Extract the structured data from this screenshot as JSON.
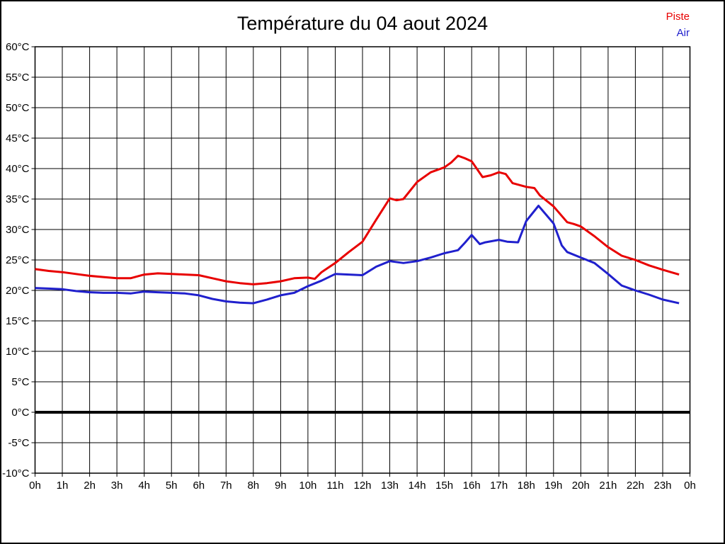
{
  "title": "Température du 04 aout 2024",
  "legend": {
    "items": [
      {
        "label": "Piste",
        "color": "#e80000"
      },
      {
        "label": "Air",
        "color": "#2020cd"
      }
    ]
  },
  "chart_data": {
    "type": "line",
    "title": "Température du 04 aout 2024",
    "xlabel": "",
    "ylabel": "",
    "xlim": [
      0,
      24
    ],
    "ylim": [
      -10,
      60
    ],
    "grid": true,
    "zero_line_emphasized": true,
    "legend_position": "top-right",
    "x_ticks": [
      {
        "value": 0,
        "label": "0h"
      },
      {
        "value": 1,
        "label": "1h"
      },
      {
        "value": 2,
        "label": "2h"
      },
      {
        "value": 3,
        "label": "3h"
      },
      {
        "value": 4,
        "label": "4h"
      },
      {
        "value": 5,
        "label": "5h"
      },
      {
        "value": 6,
        "label": "6h"
      },
      {
        "value": 7,
        "label": "7h"
      },
      {
        "value": 8,
        "label": "8h"
      },
      {
        "value": 9,
        "label": "9h"
      },
      {
        "value": 10,
        "label": "10h"
      },
      {
        "value": 11,
        "label": "11h"
      },
      {
        "value": 12,
        "label": "12h"
      },
      {
        "value": 13,
        "label": "13h"
      },
      {
        "value": 14,
        "label": "14h"
      },
      {
        "value": 15,
        "label": "15h"
      },
      {
        "value": 16,
        "label": "16h"
      },
      {
        "value": 17,
        "label": "17h"
      },
      {
        "value": 18,
        "label": "18h"
      },
      {
        "value": 19,
        "label": "19h"
      },
      {
        "value": 20,
        "label": "20h"
      },
      {
        "value": 21,
        "label": "21h"
      },
      {
        "value": 22,
        "label": "22h"
      },
      {
        "value": 23,
        "label": "23h"
      },
      {
        "value": 24,
        "label": "0h"
      }
    ],
    "y_ticks": [
      {
        "value": 60,
        "label": "60°C"
      },
      {
        "value": 55,
        "label": "55°C"
      },
      {
        "value": 50,
        "label": "50°C"
      },
      {
        "value": 45,
        "label": "45°C"
      },
      {
        "value": 40,
        "label": "40°C"
      },
      {
        "value": 35,
        "label": "35°C"
      },
      {
        "value": 30,
        "label": "30°C"
      },
      {
        "value": 25,
        "label": "25°C"
      },
      {
        "value": 20,
        "label": "20°C"
      },
      {
        "value": 15,
        "label": "15°C"
      },
      {
        "value": 10,
        "label": "10°C"
      },
      {
        "value": 5,
        "label": "5°C"
      },
      {
        "value": 0,
        "label": "0°C"
      },
      {
        "value": -5,
        "label": "-5°C"
      },
      {
        "value": -10,
        "label": "-10°C"
      }
    ],
    "series": [
      {
        "name": "Piste",
        "color": "#e80000",
        "points": [
          [
            0,
            23.5
          ],
          [
            0.5,
            23.2
          ],
          [
            1,
            23.0
          ],
          [
            1.5,
            22.7
          ],
          [
            2,
            22.4
          ],
          [
            2.5,
            22.2
          ],
          [
            3,
            22.0
          ],
          [
            3.5,
            22.0
          ],
          [
            4,
            22.6
          ],
          [
            4.5,
            22.8
          ],
          [
            5,
            22.7
          ],
          [
            5.5,
            22.6
          ],
          [
            6,
            22.5
          ],
          [
            6.5,
            22.0
          ],
          [
            7,
            21.5
          ],
          [
            7.5,
            21.2
          ],
          [
            8,
            21.0
          ],
          [
            8.5,
            21.2
          ],
          [
            9,
            21.5
          ],
          [
            9.5,
            22.0
          ],
          [
            10,
            22.1
          ],
          [
            10.25,
            21.9
          ],
          [
            10.5,
            23.0
          ],
          [
            11,
            24.5
          ],
          [
            11.5,
            26.3
          ],
          [
            12,
            28.0
          ],
          [
            12.5,
            31.6
          ],
          [
            13,
            35.1
          ],
          [
            13.25,
            34.8
          ],
          [
            13.5,
            35.0
          ],
          [
            14,
            37.8
          ],
          [
            14.5,
            39.4
          ],
          [
            15,
            40.2
          ],
          [
            15.25,
            41.0
          ],
          [
            15.5,
            42.1
          ],
          [
            15.75,
            41.7
          ],
          [
            16,
            41.2
          ],
          [
            16.4,
            38.6
          ],
          [
            16.7,
            38.9
          ],
          [
            17,
            39.4
          ],
          [
            17.25,
            39.1
          ],
          [
            17.5,
            37.6
          ],
          [
            18,
            37.0
          ],
          [
            18.3,
            36.8
          ],
          [
            18.5,
            35.6
          ],
          [
            19,
            33.8
          ],
          [
            19.5,
            31.2
          ],
          [
            19.75,
            30.9
          ],
          [
            20,
            30.5
          ],
          [
            20.5,
            28.9
          ],
          [
            21,
            27.1
          ],
          [
            21.5,
            25.7
          ],
          [
            22,
            25.0
          ],
          [
            22.5,
            24.1
          ],
          [
            23,
            23.4
          ],
          [
            23.3,
            23.0
          ],
          [
            23.6,
            22.6
          ]
        ]
      },
      {
        "name": "Air",
        "color": "#2020cd",
        "points": [
          [
            0,
            20.4
          ],
          [
            0.5,
            20.3
          ],
          [
            1,
            20.2
          ],
          [
            1.5,
            19.9
          ],
          [
            2,
            19.7
          ],
          [
            2.5,
            19.6
          ],
          [
            3,
            19.6
          ],
          [
            3.5,
            19.5
          ],
          [
            4,
            19.8
          ],
          [
            4.5,
            19.7
          ],
          [
            5,
            19.6
          ],
          [
            5.5,
            19.5
          ],
          [
            6,
            19.2
          ],
          [
            6.5,
            18.6
          ],
          [
            7,
            18.2
          ],
          [
            7.5,
            18.0
          ],
          [
            8,
            17.9
          ],
          [
            8.5,
            18.5
          ],
          [
            9,
            19.2
          ],
          [
            9.5,
            19.6
          ],
          [
            10,
            20.7
          ],
          [
            10.5,
            21.6
          ],
          [
            11,
            22.7
          ],
          [
            11.5,
            22.6
          ],
          [
            12,
            22.5
          ],
          [
            12.5,
            23.9
          ],
          [
            13,
            24.8
          ],
          [
            13.5,
            24.5
          ],
          [
            14,
            24.8
          ],
          [
            14.5,
            25.4
          ],
          [
            15,
            26.1
          ],
          [
            15.5,
            26.6
          ],
          [
            15.75,
            27.8
          ],
          [
            16,
            29.1
          ],
          [
            16.3,
            27.6
          ],
          [
            16.5,
            27.9
          ],
          [
            17,
            28.3
          ],
          [
            17.3,
            28.0
          ],
          [
            17.7,
            27.9
          ],
          [
            18,
            31.4
          ],
          [
            18.45,
            33.9
          ],
          [
            19,
            31.0
          ],
          [
            19.3,
            27.4
          ],
          [
            19.5,
            26.3
          ],
          [
            20,
            25.4
          ],
          [
            20.5,
            24.5
          ],
          [
            21,
            22.7
          ],
          [
            21.5,
            20.8
          ],
          [
            22,
            20.0
          ],
          [
            22.5,
            19.3
          ],
          [
            23,
            18.5
          ],
          [
            23.5,
            18.0
          ],
          [
            23.6,
            17.9
          ]
        ]
      }
    ]
  }
}
